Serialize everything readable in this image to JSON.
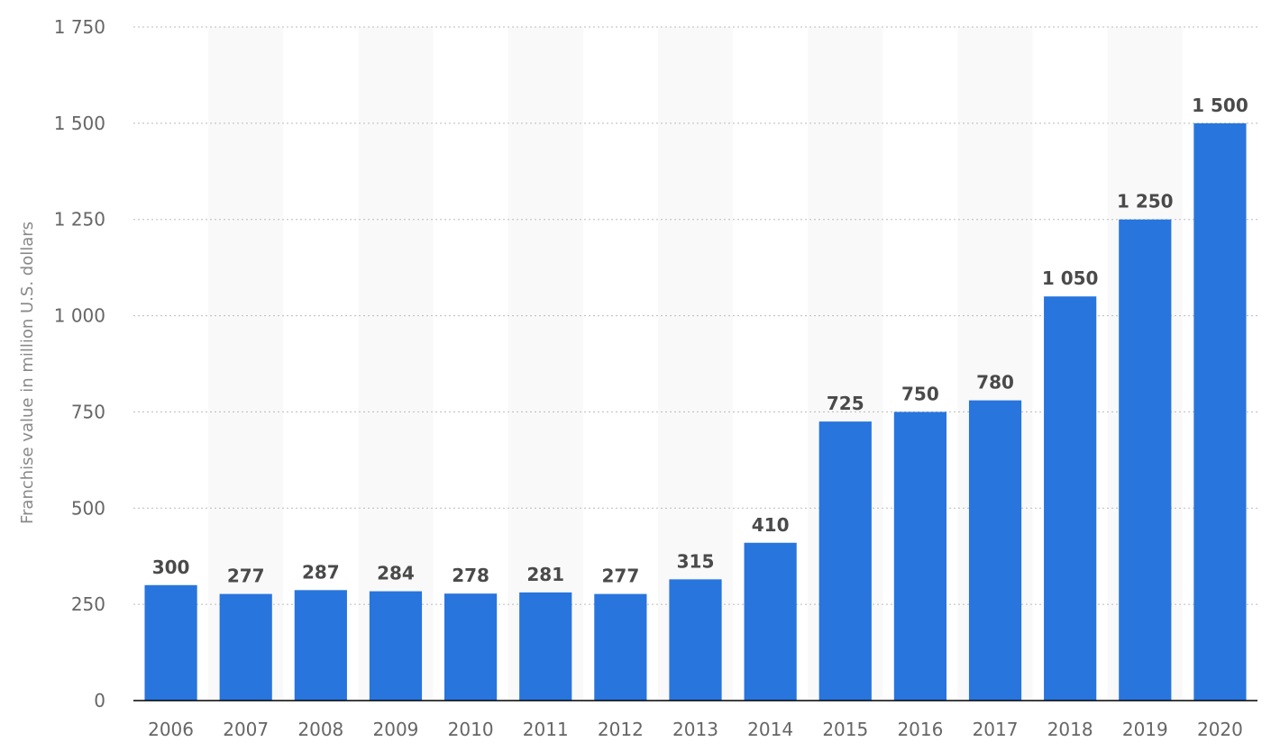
{
  "chart_data": {
    "type": "bar",
    "categories": [
      "2006",
      "2007",
      "2008",
      "2009",
      "2010",
      "2011",
      "2012",
      "2013",
      "2014",
      "2015",
      "2016",
      "2017",
      "2018",
      "2019",
      "2020"
    ],
    "values": [
      300,
      277,
      287,
      284,
      278,
      281,
      277,
      315,
      410,
      725,
      750,
      780,
      1050,
      1250,
      1500
    ],
    "value_labels": [
      "300",
      "277",
      "287",
      "284",
      "278",
      "281",
      "277",
      "315",
      "410",
      "725",
      "750",
      "780",
      "1 050",
      "1 250",
      "1 500"
    ],
    "title": "",
    "xlabel": "",
    "ylabel": "Franchise value in million U.S. dollars",
    "ylim": [
      0,
      1750
    ],
    "yticks": [
      0,
      250,
      500,
      750,
      1000,
      1250,
      1500,
      1750
    ],
    "ytick_labels": [
      "0",
      "250",
      "500",
      "750",
      "1 000",
      "1 250",
      "1 500",
      "1 750"
    ],
    "grid": true,
    "legend": "none",
    "bar_color": "#2875DD",
    "band_color": "#F9F9F9",
    "grid_color": "#BBBBBB",
    "axis_color": "#000000"
  }
}
